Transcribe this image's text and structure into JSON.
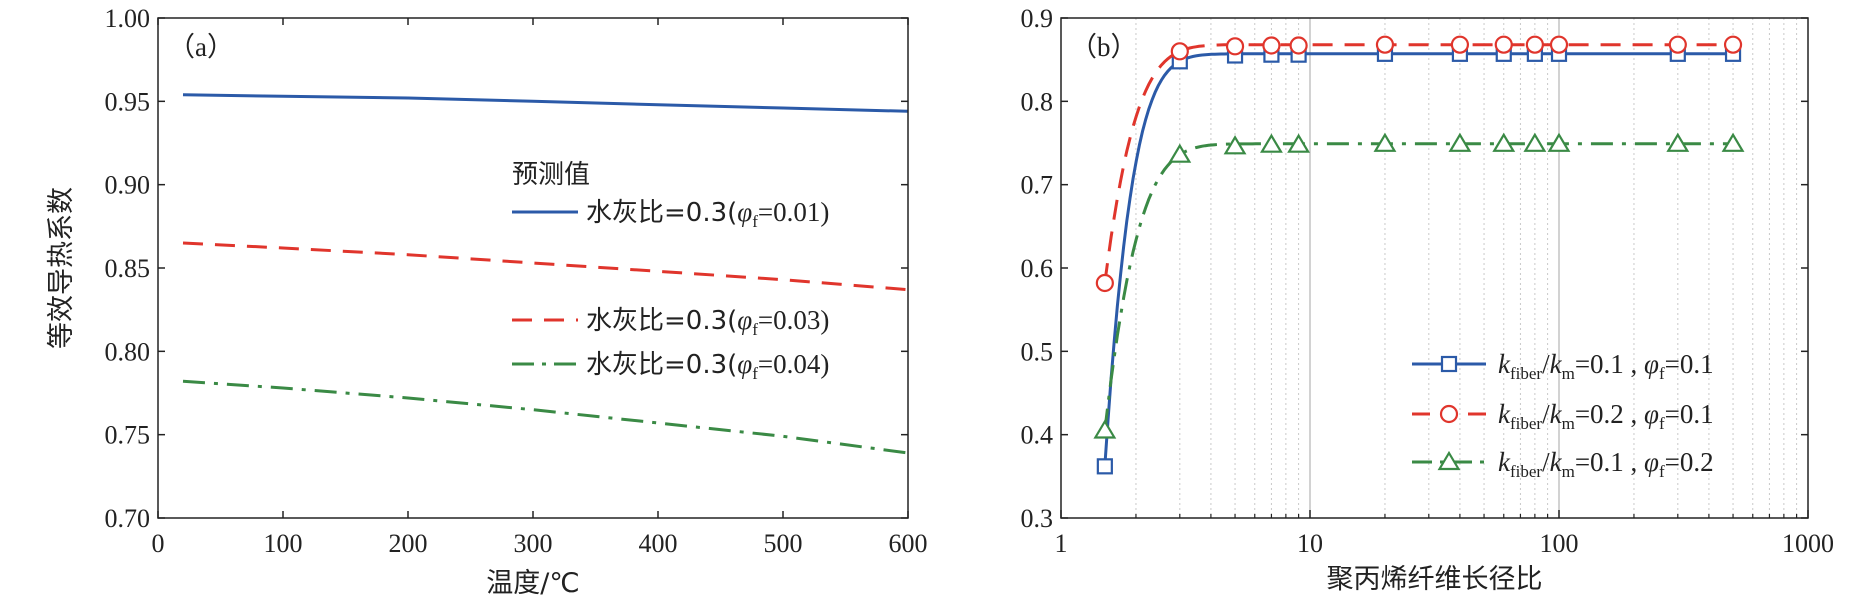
{
  "chart_data": [
    {
      "type": "line",
      "panel_label": "（a）",
      "xlabel": "温度/℃",
      "ylabel": "等效导热系数",
      "xlim": [
        0,
        600
      ],
      "ylim": [
        0.7,
        1.0
      ],
      "xticks": [
        "0",
        "100",
        "200",
        "300",
        "400",
        "500",
        "600"
      ],
      "yticks": [
        "0.70",
        "0.75",
        "0.80",
        "0.85",
        "0.90",
        "0.95",
        "1.00"
      ],
      "legend_title": "预测值",
      "legend_placement": "center-right",
      "grid": false,
      "series": [
        {
          "name_prefix": "水灰比=0.3(",
          "phi": "φ",
          "phi_sub": "f",
          "name_suffix": "=0.01)",
          "color": "#2b5aa8",
          "style": "solid",
          "x": [
            20,
            100,
            200,
            300,
            400,
            500,
            600
          ],
          "y": [
            0.954,
            0.953,
            0.952,
            0.95,
            0.948,
            0.946,
            0.944
          ]
        },
        {
          "name_prefix": "水灰比=0.3(",
          "phi": "φ",
          "phi_sub": "f",
          "name_suffix": "=0.03)",
          "color": "#e0352c",
          "style": "dashed",
          "x": [
            20,
            100,
            200,
            300,
            400,
            500,
            600
          ],
          "y": [
            0.865,
            0.862,
            0.858,
            0.853,
            0.848,
            0.843,
            0.837
          ]
        },
        {
          "name_prefix": "水灰比=0.3(",
          "phi": "φ",
          "phi_sub": "f",
          "name_suffix": "=0.04)",
          "color": "#3a8a45",
          "style": "dashdot",
          "x": [
            20,
            100,
            200,
            300,
            400,
            500,
            600
          ],
          "y": [
            0.782,
            0.778,
            0.772,
            0.765,
            0.757,
            0.749,
            0.739
          ]
        }
      ]
    },
    {
      "type": "line",
      "panel_label": "（b）",
      "xlabel": "聚丙烯纤维长径比",
      "xscale": "log",
      "xlim": [
        1,
        1000
      ],
      "ylim": [
        0.3,
        0.9
      ],
      "xticks": [
        "1",
        "10",
        "100",
        "1000"
      ],
      "yticks": [
        "0.3",
        "0.4",
        "0.5",
        "0.6",
        "0.7",
        "0.8",
        "0.9"
      ],
      "legend_placement": "bottom-right",
      "grid": "vertical-log",
      "series": [
        {
          "k1": "k",
          "k1_sub": "fiber",
          "k2": "k",
          "k2_sub": "m",
          "ratio": "=0.1",
          "phi": "φ",
          "phi_sub": "f",
          "phi_val": "=0.1",
          "color": "#2b5aa8",
          "style": "solid",
          "marker": "square",
          "x": [
            1.5,
            3,
            5,
            7,
            9,
            20,
            40,
            60,
            80,
            100,
            300,
            500
          ],
          "y": [
            0.362,
            0.848,
            0.855,
            0.856,
            0.856,
            0.857,
            0.857,
            0.857,
            0.857,
            0.857,
            0.857,
            0.857
          ]
        },
        {
          "k1": "k",
          "k1_sub": "fiber",
          "k2": "k",
          "k2_sub": "m",
          "ratio": "=0.2",
          "phi": "φ",
          "phi_sub": "f",
          "phi_val": "=0.1",
          "color": "#e0352c",
          "style": "dashed",
          "marker": "circle",
          "x": [
            1.5,
            3,
            5,
            7,
            9,
            20,
            40,
            60,
            80,
            100,
            300,
            500
          ],
          "y": [
            0.582,
            0.86,
            0.866,
            0.867,
            0.867,
            0.868,
            0.868,
            0.868,
            0.868,
            0.868,
            0.868,
            0.868
          ]
        },
        {
          "k1": "k",
          "k1_sub": "fiber",
          "k2": "k",
          "k2_sub": "m",
          "ratio": "=0.1",
          "phi": "φ",
          "phi_sub": "f",
          "phi_val": "=0.2",
          "color": "#3a8a45",
          "style": "dashdot",
          "marker": "triangle",
          "x": [
            1.5,
            3,
            5,
            7,
            9,
            20,
            40,
            60,
            80,
            100,
            300,
            500
          ],
          "y": [
            0.405,
            0.736,
            0.746,
            0.748,
            0.748,
            0.749,
            0.749,
            0.749,
            0.749,
            0.749,
            0.749,
            0.749
          ]
        }
      ]
    }
  ]
}
